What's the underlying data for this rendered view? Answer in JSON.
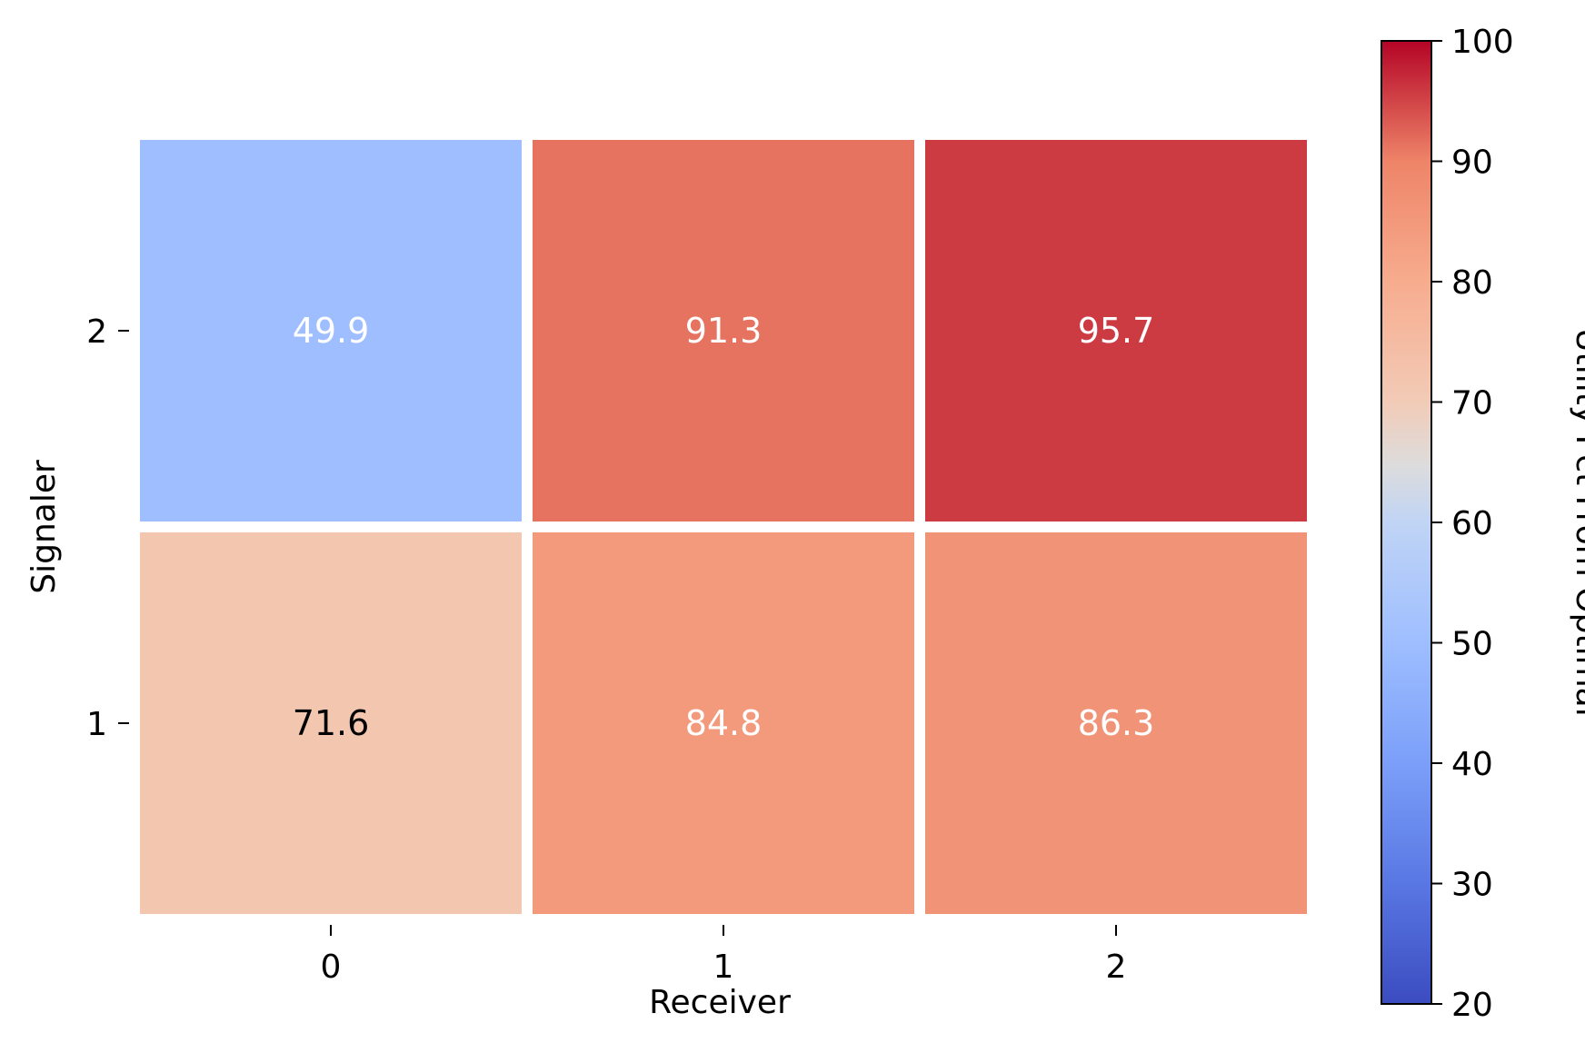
{
  "chart_data": {
    "type": "heatmap",
    "xlabel": "Receiver",
    "ylabel": "Signaler",
    "x_categories": [
      "0",
      "1",
      "2"
    ],
    "y_categories": [
      "2",
      "1"
    ],
    "values": [
      [
        49.9,
        91.3,
        95.7
      ],
      [
        71.6,
        84.8,
        86.3
      ]
    ],
    "value_labels": [
      [
        "49.9",
        "91.3",
        "95.7"
      ],
      [
        "71.6",
        "84.8",
        "86.3"
      ]
    ],
    "colormap": "coolwarm",
    "colorbar": {
      "label": "Utility Pct From Optimal",
      "range": [
        20,
        100
      ],
      "ticks": [
        "20",
        "30",
        "40",
        "50",
        "60",
        "70",
        "80",
        "90",
        "100"
      ]
    }
  }
}
